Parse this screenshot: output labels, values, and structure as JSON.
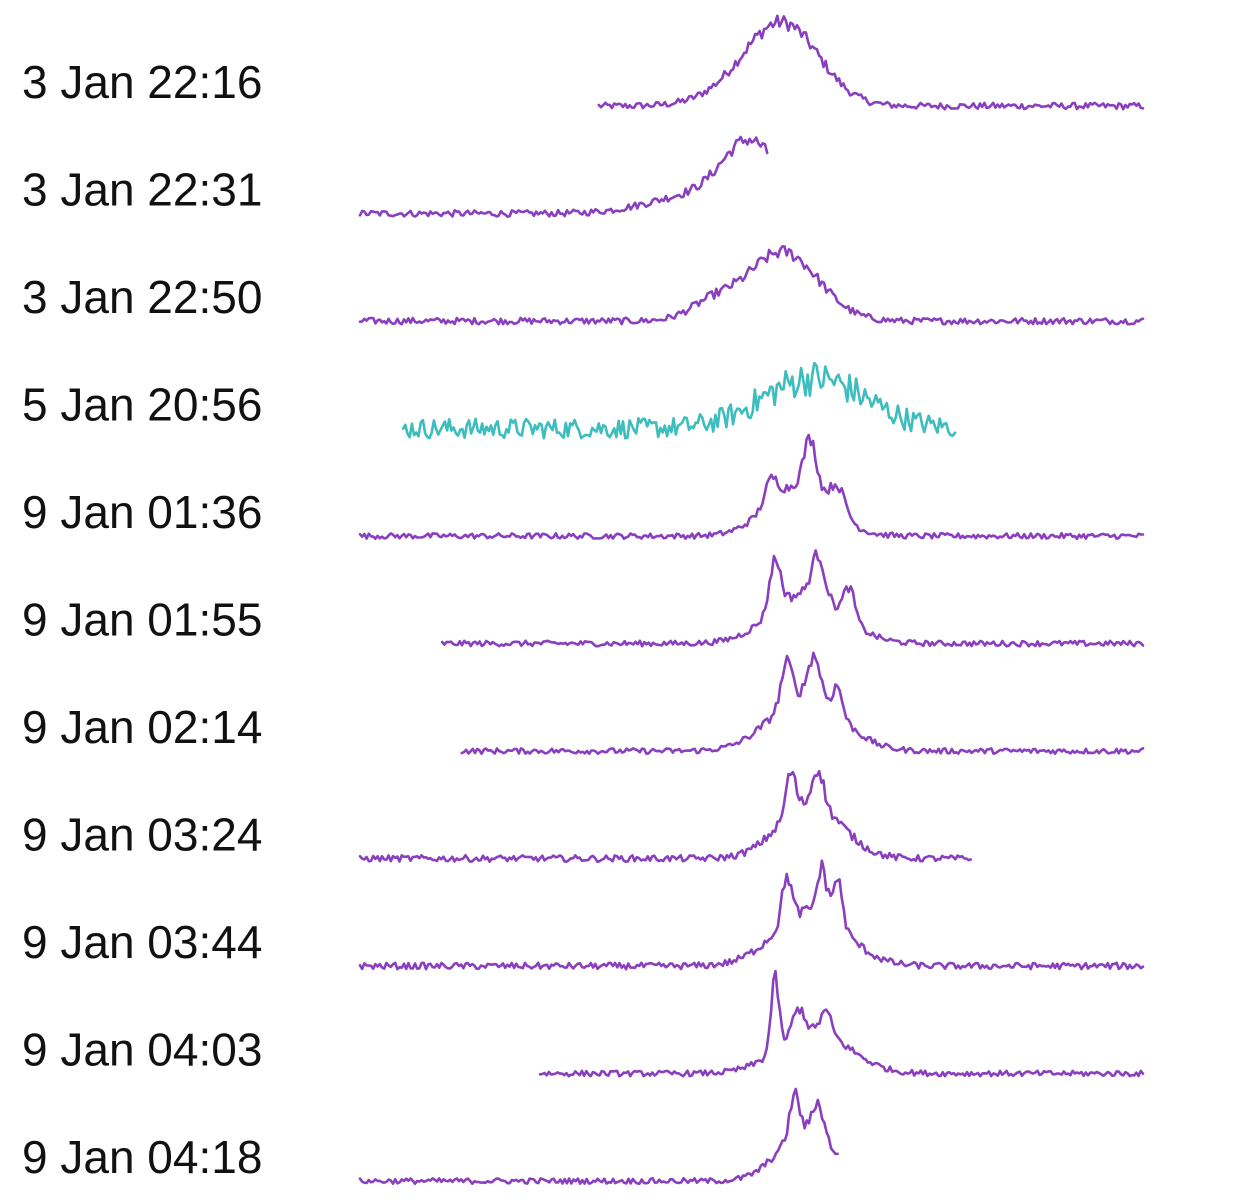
{
  "chart_data": {
    "type": "line",
    "title": "",
    "xlabel": "",
    "ylabel": "",
    "grid": false,
    "legend": "none",
    "colors": {
      "purple": "#8a3fbf",
      "teal": "#3dbdbd"
    },
    "series": [
      {
        "name": "3 Jan 22:16",
        "color": "purple",
        "x_start": 0.305,
        "x_end": 1.0,
        "noise": 0.07,
        "peaks": [
          {
            "center": 0.545,
            "width": 0.045,
            "height": 0.72
          },
          {
            "center": 0.505,
            "width": 0.05,
            "height": 0.25
          }
        ]
      },
      {
        "name": "3 Jan 22:31",
        "color": "purple",
        "x_start": 0.0,
        "x_end": 0.52,
        "noise": 0.07,
        "peaks": [
          {
            "center": 0.5,
            "width": 0.035,
            "height": 0.7
          },
          {
            "center": 0.43,
            "width": 0.06,
            "height": 0.2
          }
        ]
      },
      {
        "name": "3 Jan 22:50",
        "color": "purple",
        "x_start": 0.0,
        "x_end": 1.0,
        "noise": 0.07,
        "peaks": [
          {
            "center": 0.54,
            "width": 0.045,
            "height": 0.75
          },
          {
            "center": 0.45,
            "width": 0.03,
            "height": 0.18
          }
        ]
      },
      {
        "name": "5 Jan 20:56",
        "color": "teal",
        "x_start": 0.055,
        "x_end": 0.76,
        "noise": 0.22,
        "peaks": [
          {
            "center": 0.58,
            "width": 0.065,
            "height": 0.55
          }
        ]
      },
      {
        "name": "9 Jan 01:36",
        "color": "purple",
        "x_start": 0.0,
        "x_end": 1.0,
        "noise": 0.06,
        "peaks": [
          {
            "center": 0.56,
            "width": 0.04,
            "height": 0.55
          },
          {
            "center": 0.575,
            "width": 0.008,
            "height": 0.55
          },
          {
            "center": 0.525,
            "width": 0.008,
            "height": 0.25
          },
          {
            "center": 0.61,
            "width": 0.01,
            "height": 0.3
          }
        ]
      },
      {
        "name": "9 Jan 01:55",
        "color": "purple",
        "x_start": 0.105,
        "x_end": 1.0,
        "noise": 0.06,
        "peaks": [
          {
            "center": 0.57,
            "width": 0.045,
            "height": 0.55
          },
          {
            "center": 0.53,
            "width": 0.007,
            "height": 0.55
          },
          {
            "center": 0.585,
            "width": 0.008,
            "height": 0.45
          },
          {
            "center": 0.625,
            "width": 0.007,
            "height": 0.35
          }
        ]
      },
      {
        "name": "9 Jan 02:14",
        "color": "purple",
        "x_start": 0.13,
        "x_end": 1.0,
        "noise": 0.06,
        "peaks": [
          {
            "center": 0.57,
            "width": 0.045,
            "height": 0.6
          },
          {
            "center": 0.545,
            "width": 0.007,
            "height": 0.45
          },
          {
            "center": 0.58,
            "width": 0.008,
            "height": 0.45
          },
          {
            "center": 0.61,
            "width": 0.006,
            "height": 0.3
          }
        ]
      },
      {
        "name": "9 Jan 03:24",
        "color": "purple",
        "x_start": 0.0,
        "x_end": 0.78,
        "noise": 0.07,
        "peaks": [
          {
            "center": 0.575,
            "width": 0.04,
            "height": 0.6
          },
          {
            "center": 0.55,
            "width": 0.006,
            "height": 0.45
          },
          {
            "center": 0.585,
            "width": 0.007,
            "height": 0.4
          }
        ]
      },
      {
        "name": "9 Jan 03:44",
        "color": "purple",
        "x_start": 0.0,
        "x_end": 1.0,
        "noise": 0.07,
        "peaks": [
          {
            "center": 0.575,
            "width": 0.045,
            "height": 0.6
          },
          {
            "center": 0.545,
            "width": 0.006,
            "height": 0.5
          },
          {
            "center": 0.59,
            "width": 0.006,
            "height": 0.5
          },
          {
            "center": 0.61,
            "width": 0.006,
            "height": 0.5
          }
        ]
      },
      {
        "name": "9 Jan 04:03",
        "color": "purple",
        "x_start": 0.23,
        "x_end": 1.0,
        "noise": 0.06,
        "peaks": [
          {
            "center": 0.58,
            "width": 0.045,
            "height": 0.45
          },
          {
            "center": 0.53,
            "width": 0.005,
            "height": 0.8
          },
          {
            "center": 0.56,
            "width": 0.008,
            "height": 0.3
          },
          {
            "center": 0.595,
            "width": 0.007,
            "height": 0.25
          }
        ]
      },
      {
        "name": "9 Jan 04:18",
        "color": "purple",
        "x_start": 0.0,
        "x_end": 0.61,
        "noise": 0.06,
        "peaks": [
          {
            "center": 0.57,
            "width": 0.035,
            "height": 0.55
          },
          {
            "center": 0.555,
            "width": 0.006,
            "height": 0.45
          },
          {
            "center": 0.585,
            "width": 0.007,
            "height": 0.35
          }
        ]
      }
    ]
  }
}
